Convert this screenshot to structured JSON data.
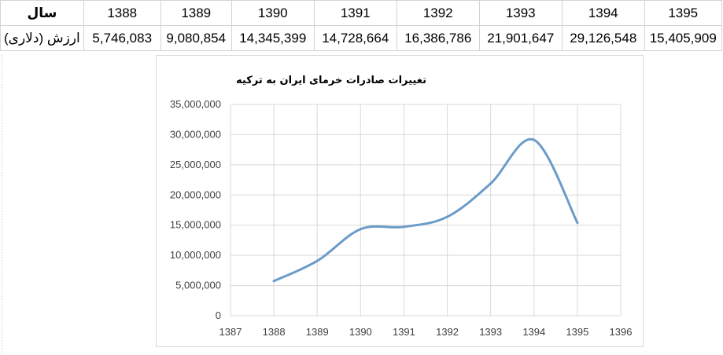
{
  "table": {
    "row_year_label": "سال",
    "row_value_label": "ارزش (دلاری)",
    "years": [
      "1388",
      "1389",
      "1390",
      "1391",
      "1392",
      "1393",
      "1394",
      "1395"
    ],
    "values": [
      "5,746,083",
      "9,080,854",
      "14,345,399",
      "14,728,664",
      "16,386,786",
      "21,901,647",
      "29,126,548",
      "15,405,909"
    ]
  },
  "chart_data": {
    "type": "line",
    "title": "تغییرات صادرات خرمای ایران به ترکیه",
    "x": [
      1388,
      1389,
      1390,
      1391,
      1392,
      1393,
      1394,
      1395
    ],
    "series": [
      {
        "values": [
          5746083,
          9080854,
          14345399,
          14728664,
          16386786,
          21901647,
          29126548,
          15405909
        ]
      }
    ],
    "xlim": [
      1387,
      1396
    ],
    "xticks": [
      "1387",
      "1388",
      "1389",
      "1390",
      "1391",
      "1392",
      "1393",
      "1394",
      "1395",
      "1396"
    ],
    "ylim": [
      0,
      35000000
    ],
    "yticks": [
      "0",
      "5,000,000",
      "10,000,000",
      "15,000,000",
      "20,000,000",
      "25,000,000",
      "30,000,000",
      "35,000,000"
    ],
    "grid": true,
    "smooth": true,
    "line_color": "#6b9bc8",
    "grid_color": "#d9d9d9"
  }
}
